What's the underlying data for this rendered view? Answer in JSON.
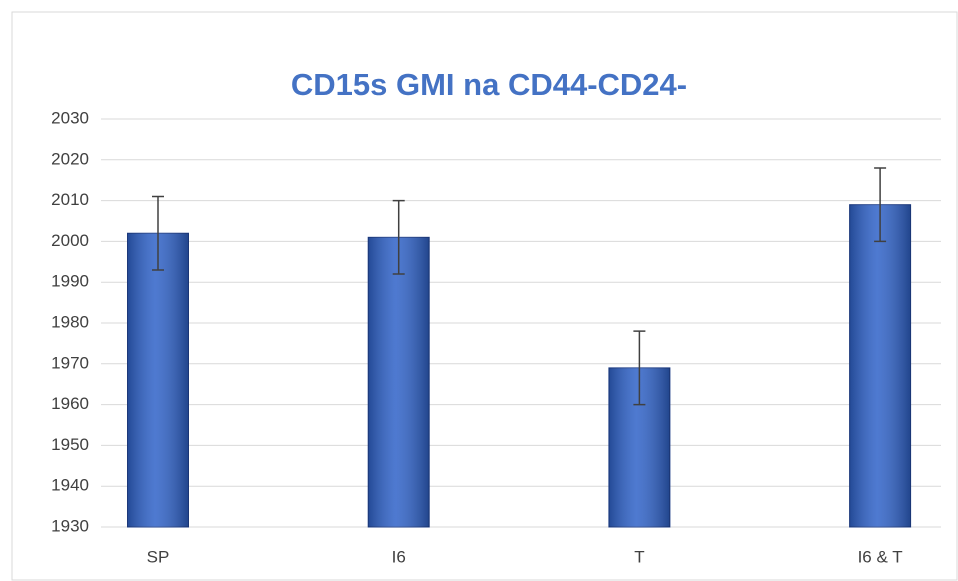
{
  "chart_data": {
    "type": "bar",
    "title": "CD15s GMI na CD44-CD24-",
    "categories": [
      "SP",
      "I6",
      "T",
      "I6 & T"
    ],
    "values": [
      2002,
      2001,
      1969,
      2009
    ],
    "errors": [
      9,
      9,
      9,
      9
    ],
    "color": "#2f62c8",
    "ylim": [
      1930,
      2030
    ],
    "yticks": [
      1930,
      1940,
      1950,
      1960,
      1970,
      1980,
      1990,
      2000,
      2010,
      2020,
      2030
    ],
    "grid": true
  }
}
